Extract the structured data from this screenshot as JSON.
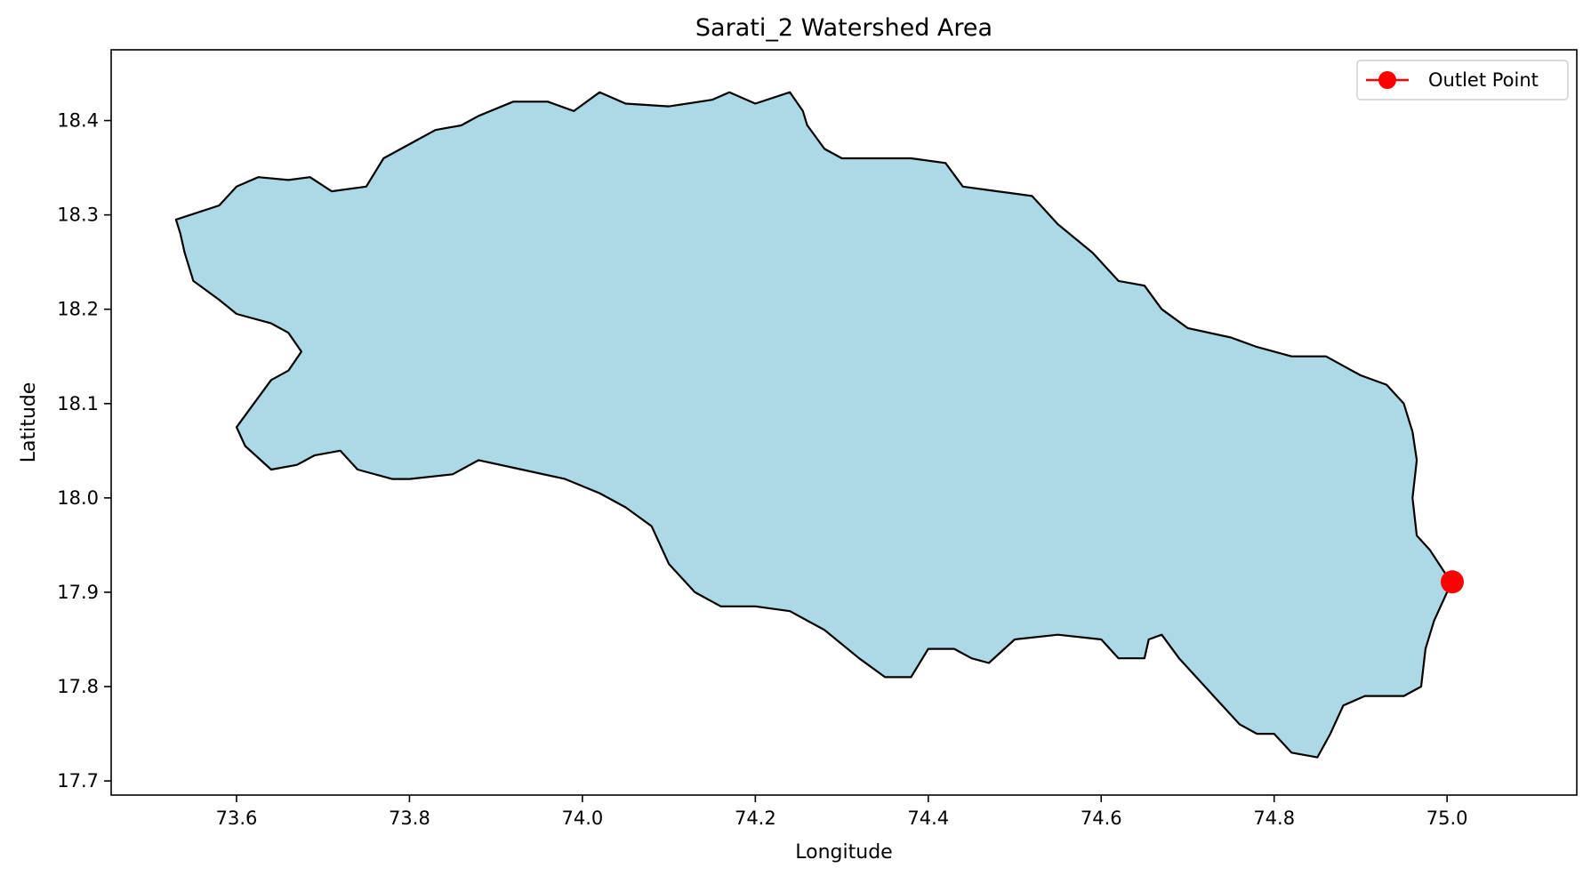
{
  "chart_data": {
    "type": "map",
    "title": "Sarati_2 Watershed Area",
    "xlabel": "Longitude",
    "ylabel": "Latitude",
    "xlim": [
      73.455,
      75.15
    ],
    "ylim": [
      17.685,
      18.475
    ],
    "x_ticks": [
      73.6,
      73.8,
      74.0,
      74.2,
      74.4,
      74.6,
      74.8,
      75.0
    ],
    "x_tick_labels": [
      "73.6",
      "73.8",
      "74.0",
      "74.2",
      "74.4",
      "74.6",
      "74.8",
      "75.0"
    ],
    "y_ticks": [
      17.7,
      17.8,
      17.9,
      18.0,
      18.1,
      18.2,
      18.3,
      18.4
    ],
    "y_tick_labels": [
      "17.7",
      "17.8",
      "17.9",
      "18.0",
      "18.1",
      "18.2",
      "18.3",
      "18.4"
    ],
    "grid": false,
    "legend_position": "top-right",
    "watershed": {
      "fill": "#add8e6",
      "edge": "#000000",
      "boundary": [
        [
          73.53,
          18.295
        ],
        [
          73.58,
          18.31
        ],
        [
          73.6,
          18.33
        ],
        [
          73.625,
          18.34
        ],
        [
          73.66,
          18.337
        ],
        [
          73.685,
          18.34
        ],
        [
          73.71,
          18.325
        ],
        [
          73.75,
          18.33
        ],
        [
          73.77,
          18.36
        ],
        [
          73.8,
          18.375
        ],
        [
          73.83,
          18.39
        ],
        [
          73.86,
          18.395
        ],
        [
          73.88,
          18.405
        ],
        [
          73.92,
          18.42
        ],
        [
          73.96,
          18.42
        ],
        [
          73.99,
          18.41
        ],
        [
          74.02,
          18.43
        ],
        [
          74.05,
          18.418
        ],
        [
          74.1,
          18.415
        ],
        [
          74.15,
          18.422
        ],
        [
          74.17,
          18.43
        ],
        [
          74.2,
          18.418
        ],
        [
          74.24,
          18.43
        ],
        [
          74.255,
          18.41
        ],
        [
          74.26,
          18.395
        ],
        [
          74.28,
          18.37
        ],
        [
          74.3,
          18.36
        ],
        [
          74.34,
          18.36
        ],
        [
          74.38,
          18.36
        ],
        [
          74.42,
          18.355
        ],
        [
          74.44,
          18.33
        ],
        [
          74.48,
          18.325
        ],
        [
          74.52,
          18.32
        ],
        [
          74.55,
          18.29
        ],
        [
          74.59,
          18.26
        ],
        [
          74.62,
          18.23
        ],
        [
          74.65,
          18.225
        ],
        [
          74.67,
          18.2
        ],
        [
          74.7,
          18.18
        ],
        [
          74.75,
          18.17
        ],
        [
          74.78,
          18.16
        ],
        [
          74.82,
          18.15
        ],
        [
          74.86,
          18.15
        ],
        [
          74.9,
          18.13
        ],
        [
          74.93,
          18.12
        ],
        [
          74.95,
          18.1
        ],
        [
          74.96,
          18.07
        ],
        [
          74.965,
          18.04
        ],
        [
          74.96,
          18.0
        ],
        [
          74.965,
          17.96
        ],
        [
          74.98,
          17.945
        ],
        [
          75.005,
          17.91
        ],
        [
          74.985,
          17.87
        ],
        [
          74.975,
          17.84
        ],
        [
          74.97,
          17.8
        ],
        [
          74.95,
          17.79
        ],
        [
          74.92,
          17.79
        ],
        [
          74.905,
          17.79
        ],
        [
          74.88,
          17.78
        ],
        [
          74.865,
          17.75
        ],
        [
          74.85,
          17.725
        ],
        [
          74.82,
          17.73
        ],
        [
          74.8,
          17.75
        ],
        [
          74.78,
          17.75
        ],
        [
          74.76,
          17.76
        ],
        [
          74.73,
          17.79
        ],
        [
          74.72,
          17.8
        ],
        [
          74.69,
          17.83
        ],
        [
          74.67,
          17.855
        ],
        [
          74.655,
          17.85
        ],
        [
          74.65,
          17.83
        ],
        [
          74.62,
          17.83
        ],
        [
          74.6,
          17.85
        ],
        [
          74.55,
          17.855
        ],
        [
          74.5,
          17.85
        ],
        [
          74.47,
          17.825
        ],
        [
          74.45,
          17.83
        ],
        [
          74.43,
          17.84
        ],
        [
          74.4,
          17.84
        ],
        [
          74.38,
          17.81
        ],
        [
          74.35,
          17.81
        ],
        [
          74.32,
          17.83
        ],
        [
          74.28,
          17.86
        ],
        [
          74.24,
          17.88
        ],
        [
          74.2,
          17.885
        ],
        [
          74.16,
          17.885
        ],
        [
          74.13,
          17.9
        ],
        [
          74.1,
          17.93
        ],
        [
          74.08,
          17.97
        ],
        [
          74.05,
          17.99
        ],
        [
          74.02,
          18.005
        ],
        [
          73.98,
          18.02
        ],
        [
          73.93,
          18.03
        ],
        [
          73.88,
          18.04
        ],
        [
          73.85,
          18.025
        ],
        [
          73.8,
          18.02
        ],
        [
          73.78,
          18.02
        ],
        [
          73.74,
          18.03
        ],
        [
          73.72,
          18.05
        ],
        [
          73.69,
          18.045
        ],
        [
          73.67,
          18.035
        ],
        [
          73.64,
          18.03
        ],
        [
          73.61,
          18.055
        ],
        [
          73.6,
          18.075
        ],
        [
          73.62,
          18.1
        ],
        [
          73.64,
          18.125
        ],
        [
          73.66,
          18.135
        ],
        [
          73.675,
          18.155
        ],
        [
          73.66,
          18.175
        ],
        [
          73.64,
          18.185
        ],
        [
          73.6,
          18.195
        ],
        [
          73.58,
          18.21
        ],
        [
          73.55,
          18.23
        ],
        [
          73.54,
          18.26
        ],
        [
          73.535,
          18.28
        ]
      ]
    },
    "series": [
      {
        "name": "Outlet Point",
        "type": "marker",
        "color": "#ff0000",
        "x": [
          75.006
        ],
        "y": [
          17.911
        ]
      }
    ]
  }
}
